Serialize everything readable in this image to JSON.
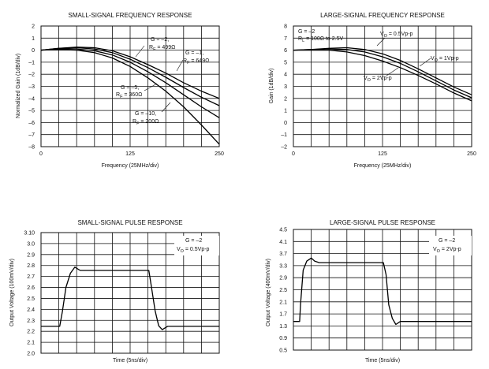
{
  "chart_data": [
    {
      "type": "line",
      "title": "SMALL-SIGNAL FREQUENCY RESPONSE",
      "xlabel": "Frequency (25MHz/div)",
      "ylabel": "Normalized Gain (1dB/div)",
      "xlim": [
        0,
        250
      ],
      "ylim": [
        -8,
        2
      ],
      "x_step": 25,
      "y_step": 1,
      "x_tick_labels": [
        {
          "x": 0,
          "label": "0"
        },
        {
          "x": 125,
          "label": "125"
        },
        {
          "x": 250,
          "label": "250"
        }
      ],
      "y_tick_labels": [
        {
          "y": 2,
          "label": "2"
        },
        {
          "y": 1,
          "label": "1"
        },
        {
          "y": 0,
          "label": "0"
        },
        {
          "y": -1,
          "label": "–1"
        },
        {
          "y": -2,
          "label": "–2"
        },
        {
          "y": -3,
          "label": "–3"
        },
        {
          "y": -4,
          "label": "–4"
        },
        {
          "y": -5,
          "label": "–5"
        },
        {
          "y": -6,
          "label": "–6"
        },
        {
          "y": -7,
          "label": "–7"
        },
        {
          "y": -8,
          "label": "–8"
        }
      ],
      "series": [
        {
          "name": "G = –2, RF = 499Ω",
          "x": [
            0,
            25,
            50,
            75,
            100,
            125,
            150,
            175,
            200,
            225,
            250
          ],
          "y": [
            0,
            0.15,
            0.25,
            0.2,
            -0.05,
            -0.55,
            -1.2,
            -1.9,
            -2.7,
            -3.4,
            -4.0
          ]
        },
        {
          "name": "G = –1, RF = 649Ω",
          "x": [
            0,
            25,
            50,
            75,
            100,
            125,
            150,
            175,
            200,
            225,
            250
          ],
          "y": [
            0,
            0.15,
            0.2,
            0.1,
            -0.2,
            -0.75,
            -1.45,
            -2.25,
            -3.1,
            -3.9,
            -4.6
          ]
        },
        {
          "name": "G = –5, RF = 360Ω",
          "x": [
            0,
            25,
            50,
            75,
            100,
            125,
            150,
            175,
            200,
            225,
            250
          ],
          "y": [
            0,
            0.1,
            0.1,
            -0.05,
            -0.4,
            -1.0,
            -1.8,
            -2.7,
            -3.7,
            -4.7,
            -5.6
          ]
        },
        {
          "name": "G = –10, RF = 200Ω",
          "x": [
            0,
            25,
            50,
            75,
            100,
            125,
            150,
            175,
            200,
            225,
            250
          ],
          "y": [
            0,
            0.05,
            0.0,
            -0.2,
            -0.65,
            -1.35,
            -2.3,
            -3.4,
            -4.7,
            -6.2,
            -7.8
          ]
        }
      ],
      "annotations": [
        {
          "main": "G = –2,",
          "rf": "R",
          "sub": "F",
          "value": " = 499Ω"
        },
        {
          "main": "G = –1,",
          "rf": "R",
          "sub": "F",
          "value": " = 649Ω"
        },
        {
          "main": "G = –5,",
          "rf": "R",
          "sub": "F",
          "value": " = 360Ω"
        },
        {
          "main": "G = –10,",
          "rf": "R",
          "sub": "F",
          "value": " = 200Ω"
        }
      ]
    },
    {
      "type": "line",
      "title": "LARGE-SIGNAL FREQUENCY RESPONSE",
      "xlabel": "Frequency (25MHz/div)",
      "ylabel": "Gain (1dB/div)",
      "xlim": [
        0,
        250
      ],
      "ylim": [
        -2,
        8
      ],
      "x_step": 25,
      "y_step": 1,
      "x_tick_labels": [
        {
          "x": 0,
          "label": "0"
        },
        {
          "x": 125,
          "label": "125"
        },
        {
          "x": 250,
          "label": "250"
        }
      ],
      "y_tick_labels": [
        {
          "y": 8,
          "label": "8"
        },
        {
          "y": 7,
          "label": "7"
        },
        {
          "y": 6,
          "label": "6"
        },
        {
          "y": 5,
          "label": "5"
        },
        {
          "y": 4,
          "label": "4"
        },
        {
          "y": 3,
          "label": "3"
        },
        {
          "y": 2,
          "label": "2"
        },
        {
          "y": 1,
          "label": "1"
        },
        {
          "y": 0,
          "label": "0"
        },
        {
          "y": -1,
          "label": "–1"
        },
        {
          "y": -2,
          "label": "–2"
        }
      ],
      "series": [
        {
          "name": "VO = 0.5Vp-p",
          "x": [
            0,
            25,
            50,
            75,
            100,
            125,
            150,
            175,
            200,
            225,
            250
          ],
          "y": [
            6.0,
            6.05,
            6.15,
            6.2,
            6.05,
            5.7,
            5.15,
            4.45,
            3.7,
            2.95,
            2.3
          ]
        },
        {
          "name": "VO = 1Vp-p",
          "x": [
            0,
            25,
            50,
            75,
            100,
            125,
            150,
            175,
            200,
            225,
            250
          ],
          "y": [
            6.0,
            6.05,
            6.1,
            6.05,
            5.85,
            5.45,
            4.9,
            4.2,
            3.45,
            2.7,
            2.05
          ]
        },
        {
          "name": "VO = 2Vp-p",
          "x": [
            0,
            25,
            50,
            75,
            100,
            125,
            150,
            175,
            200,
            225,
            250
          ],
          "y": [
            6.0,
            6.0,
            6.0,
            5.85,
            5.55,
            5.1,
            4.55,
            3.9,
            3.2,
            2.45,
            1.8
          ]
        }
      ],
      "annotations": [
        {
          "main": "G = –2"
        },
        {
          "main": "R",
          "sub": "L",
          "value": " = 100Ω to 2.5V"
        },
        {
          "main": "V",
          "sub": "O",
          "value": " = 0.5Vp-p"
        },
        {
          "main": "V",
          "sub": "O",
          "value": " = 1Vp-p"
        },
        {
          "main": "V",
          "sub": "O",
          "value": " = 2Vp-p"
        }
      ]
    },
    {
      "type": "line",
      "title": "SMALL-SIGNAL PULSE RESPONSE",
      "xlabel": "Time (5ns/div)",
      "ylabel": "Output Voltage (100mV/div)",
      "xlim": [
        0,
        10
      ],
      "ylim": [
        2.0,
        3.1
      ],
      "x_step": 1,
      "y_step": 0.1,
      "y_tick_labels": [
        {
          "y": 3.1,
          "label": "3.10"
        },
        {
          "y": 3.0,
          "label": "3.0"
        },
        {
          "y": 2.9,
          "label": "2.9"
        },
        {
          "y": 2.8,
          "label": "2.8"
        },
        {
          "y": 2.7,
          "label": "2.7"
        },
        {
          "y": 2.6,
          "label": "2.6"
        },
        {
          "y": 2.5,
          "label": "2.5"
        },
        {
          "y": 2.4,
          "label": "2.4"
        },
        {
          "y": 2.3,
          "label": "2.3"
        },
        {
          "y": 2.2,
          "label": "2.2"
        },
        {
          "y": 2.1,
          "label": "2.1"
        },
        {
          "y": 2.0,
          "label": "2.0"
        }
      ],
      "series": [
        {
          "name": "Output",
          "x": [
            0,
            1.05,
            1.2,
            1.4,
            1.65,
            1.9,
            2.2,
            6.05,
            6.2,
            6.4,
            6.6,
            6.8,
            7.1,
            10
          ],
          "y": [
            2.245,
            2.245,
            2.38,
            2.6,
            2.73,
            2.785,
            2.755,
            2.755,
            2.6,
            2.39,
            2.25,
            2.215,
            2.245,
            2.245
          ]
        }
      ],
      "annotations": [
        {
          "main": "G = –2"
        },
        {
          "main": "V",
          "sub": "O",
          "value": " = 0.5Vp-p"
        }
      ]
    },
    {
      "type": "line",
      "title": "LARGE-SIGNAL PULSE RESPONSE",
      "xlabel": "Time (5ns/div)",
      "ylabel": "Output Voltage (400mV/div)",
      "xlim": [
        0,
        10
      ],
      "ylim": [
        0.5,
        4.5
      ],
      "x_step": 1,
      "y_step": 0.4,
      "y_tick_labels": [
        {
          "y": 4.5,
          "label": "4.5"
        },
        {
          "y": 4.1,
          "label": "4.1"
        },
        {
          "y": 3.7,
          "label": "3.7"
        },
        {
          "y": 3.3,
          "label": "3.3"
        },
        {
          "y": 2.9,
          "label": "2.9"
        },
        {
          "y": 2.5,
          "label": "2.5"
        },
        {
          "y": 2.1,
          "label": "2.1"
        },
        {
          "y": 1.7,
          "label": "1.7"
        },
        {
          "y": 1.3,
          "label": "1.3"
        },
        {
          "y": 0.9,
          "label": "0.9"
        },
        {
          "y": 0.5,
          "label": "0.5"
        }
      ],
      "series": [
        {
          "name": "Output",
          "x": [
            0,
            0.35,
            0.4,
            0.55,
            0.75,
            1.0,
            1.2,
            1.45,
            5.05,
            5.2,
            5.35,
            5.55,
            5.75,
            6.0,
            10
          ],
          "y": [
            1.45,
            1.45,
            2.0,
            3.15,
            3.45,
            3.55,
            3.45,
            3.4,
            3.4,
            3.0,
            2.0,
            1.55,
            1.35,
            1.45,
            1.45
          ]
        }
      ],
      "annotations": [
        {
          "main": "G = –2"
        },
        {
          "main": "V",
          "sub": "O",
          "value": " = 2Vp-p"
        }
      ]
    }
  ]
}
